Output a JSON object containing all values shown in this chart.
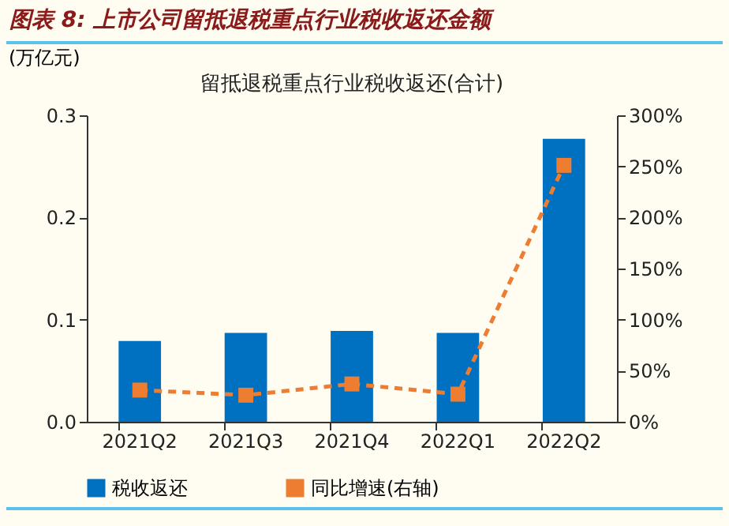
{
  "chart_data": {
    "type": "bar",
    "title": "图表 8: 上市公司留抵退税重点行业税收返还金额",
    "subtitle": "留抵退税重点行业税收返还(合计)",
    "ylabel": "(万亿元)",
    "categories": [
      "2021Q2",
      "2021Q3",
      "2021Q4",
      "2022Q1",
      "2022Q2"
    ],
    "series": [
      {
        "name": "税收返还",
        "color": "#0070c0",
        "values": [
          0.079,
          0.087,
          0.089,
          0.087,
          0.277
        ]
      },
      {
        "name": "同比增速(右轴)",
        "type": "line",
        "axis": "y2",
        "color": "#ed7d31",
        "values": [
          31,
          26,
          37,
          27,
          251
        ]
      }
    ],
    "ylim": [
      0,
      0.3
    ],
    "yticks": [
      {
        "value": 0,
        "label": "0.0"
      },
      {
        "value": 0.1,
        "label": "0.1"
      },
      {
        "value": 0.2,
        "label": "0.2"
      },
      {
        "value": 0.3,
        "label": "0.3"
      }
    ],
    "y2lim": [
      0,
      300
    ],
    "y2ticks": [
      {
        "value": 0,
        "label": "0%"
      },
      {
        "value": 50,
        "label": "50%"
      },
      {
        "value": 100,
        "label": "100%"
      },
      {
        "value": 150,
        "label": "150%"
      },
      {
        "value": 200,
        "label": "200%"
      },
      {
        "value": 250,
        "label": "250%"
      },
      {
        "value": 300,
        "label": "300%"
      }
    ],
    "legend": "bottom",
    "marker": "square",
    "line_style": "dashed"
  }
}
